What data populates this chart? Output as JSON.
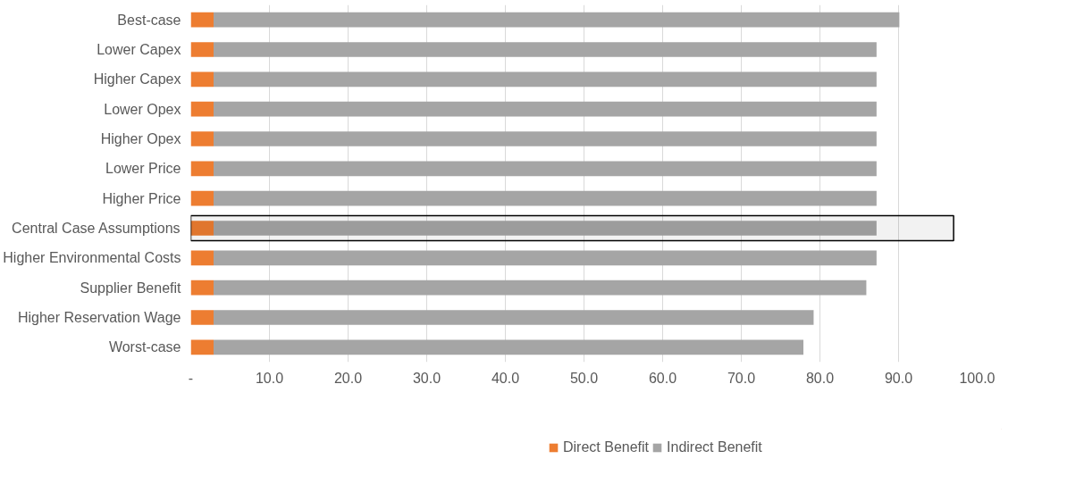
{
  "chart_data": {
    "type": "bar",
    "orientation": "horizontal",
    "stacked": true,
    "categories": [
      "Best-case",
      "Lower Capex",
      "Higher Capex",
      "Lower Opex",
      "Higher Opex",
      "Lower Price",
      "Higher Price",
      "Central Case Assumptions",
      "Higher Environmental Costs",
      "Supplier Benefit",
      "Higher Reservation Wage",
      "Worst-case"
    ],
    "series": [
      {
        "name": "Direct Benefit",
        "color": "#ed7d31",
        "values": [
          2.9,
          2.9,
          2.9,
          2.9,
          2.9,
          2.9,
          2.9,
          2.9,
          2.9,
          2.9,
          2.9,
          2.9
        ]
      },
      {
        "name": "Indirect Benefit",
        "color": "#a5a5a5",
        "values": [
          87.2,
          84.3,
          84.3,
          84.3,
          84.3,
          84.3,
          84.3,
          84.3,
          84.3,
          83.0,
          76.3,
          75.0
        ]
      }
    ],
    "xlim": [
      0,
      100
    ],
    "xticks": [
      {
        "value": 0,
        "label": "-"
      },
      {
        "value": 10,
        "label": "10.0"
      },
      {
        "value": 20,
        "label": "20.0"
      },
      {
        "value": 30,
        "label": "30.0"
      },
      {
        "value": 40,
        "label": "40.0"
      },
      {
        "value": 50,
        "label": "50.0"
      },
      {
        "value": 60,
        "label": "60.0"
      },
      {
        "value": 70,
        "label": "70.0"
      },
      {
        "value": 80,
        "label": "80.0"
      },
      {
        "value": 90,
        "label": "90.0"
      },
      {
        "value": 100,
        "label": "100.0"
      }
    ],
    "grid": "x",
    "legend": "bottom",
    "bands": [
      {
        "axis": "y",
        "from": "Central Case Assumptions",
        "to": "Central Case Assumptions",
        "color": "#000000"
      }
    ]
  }
}
